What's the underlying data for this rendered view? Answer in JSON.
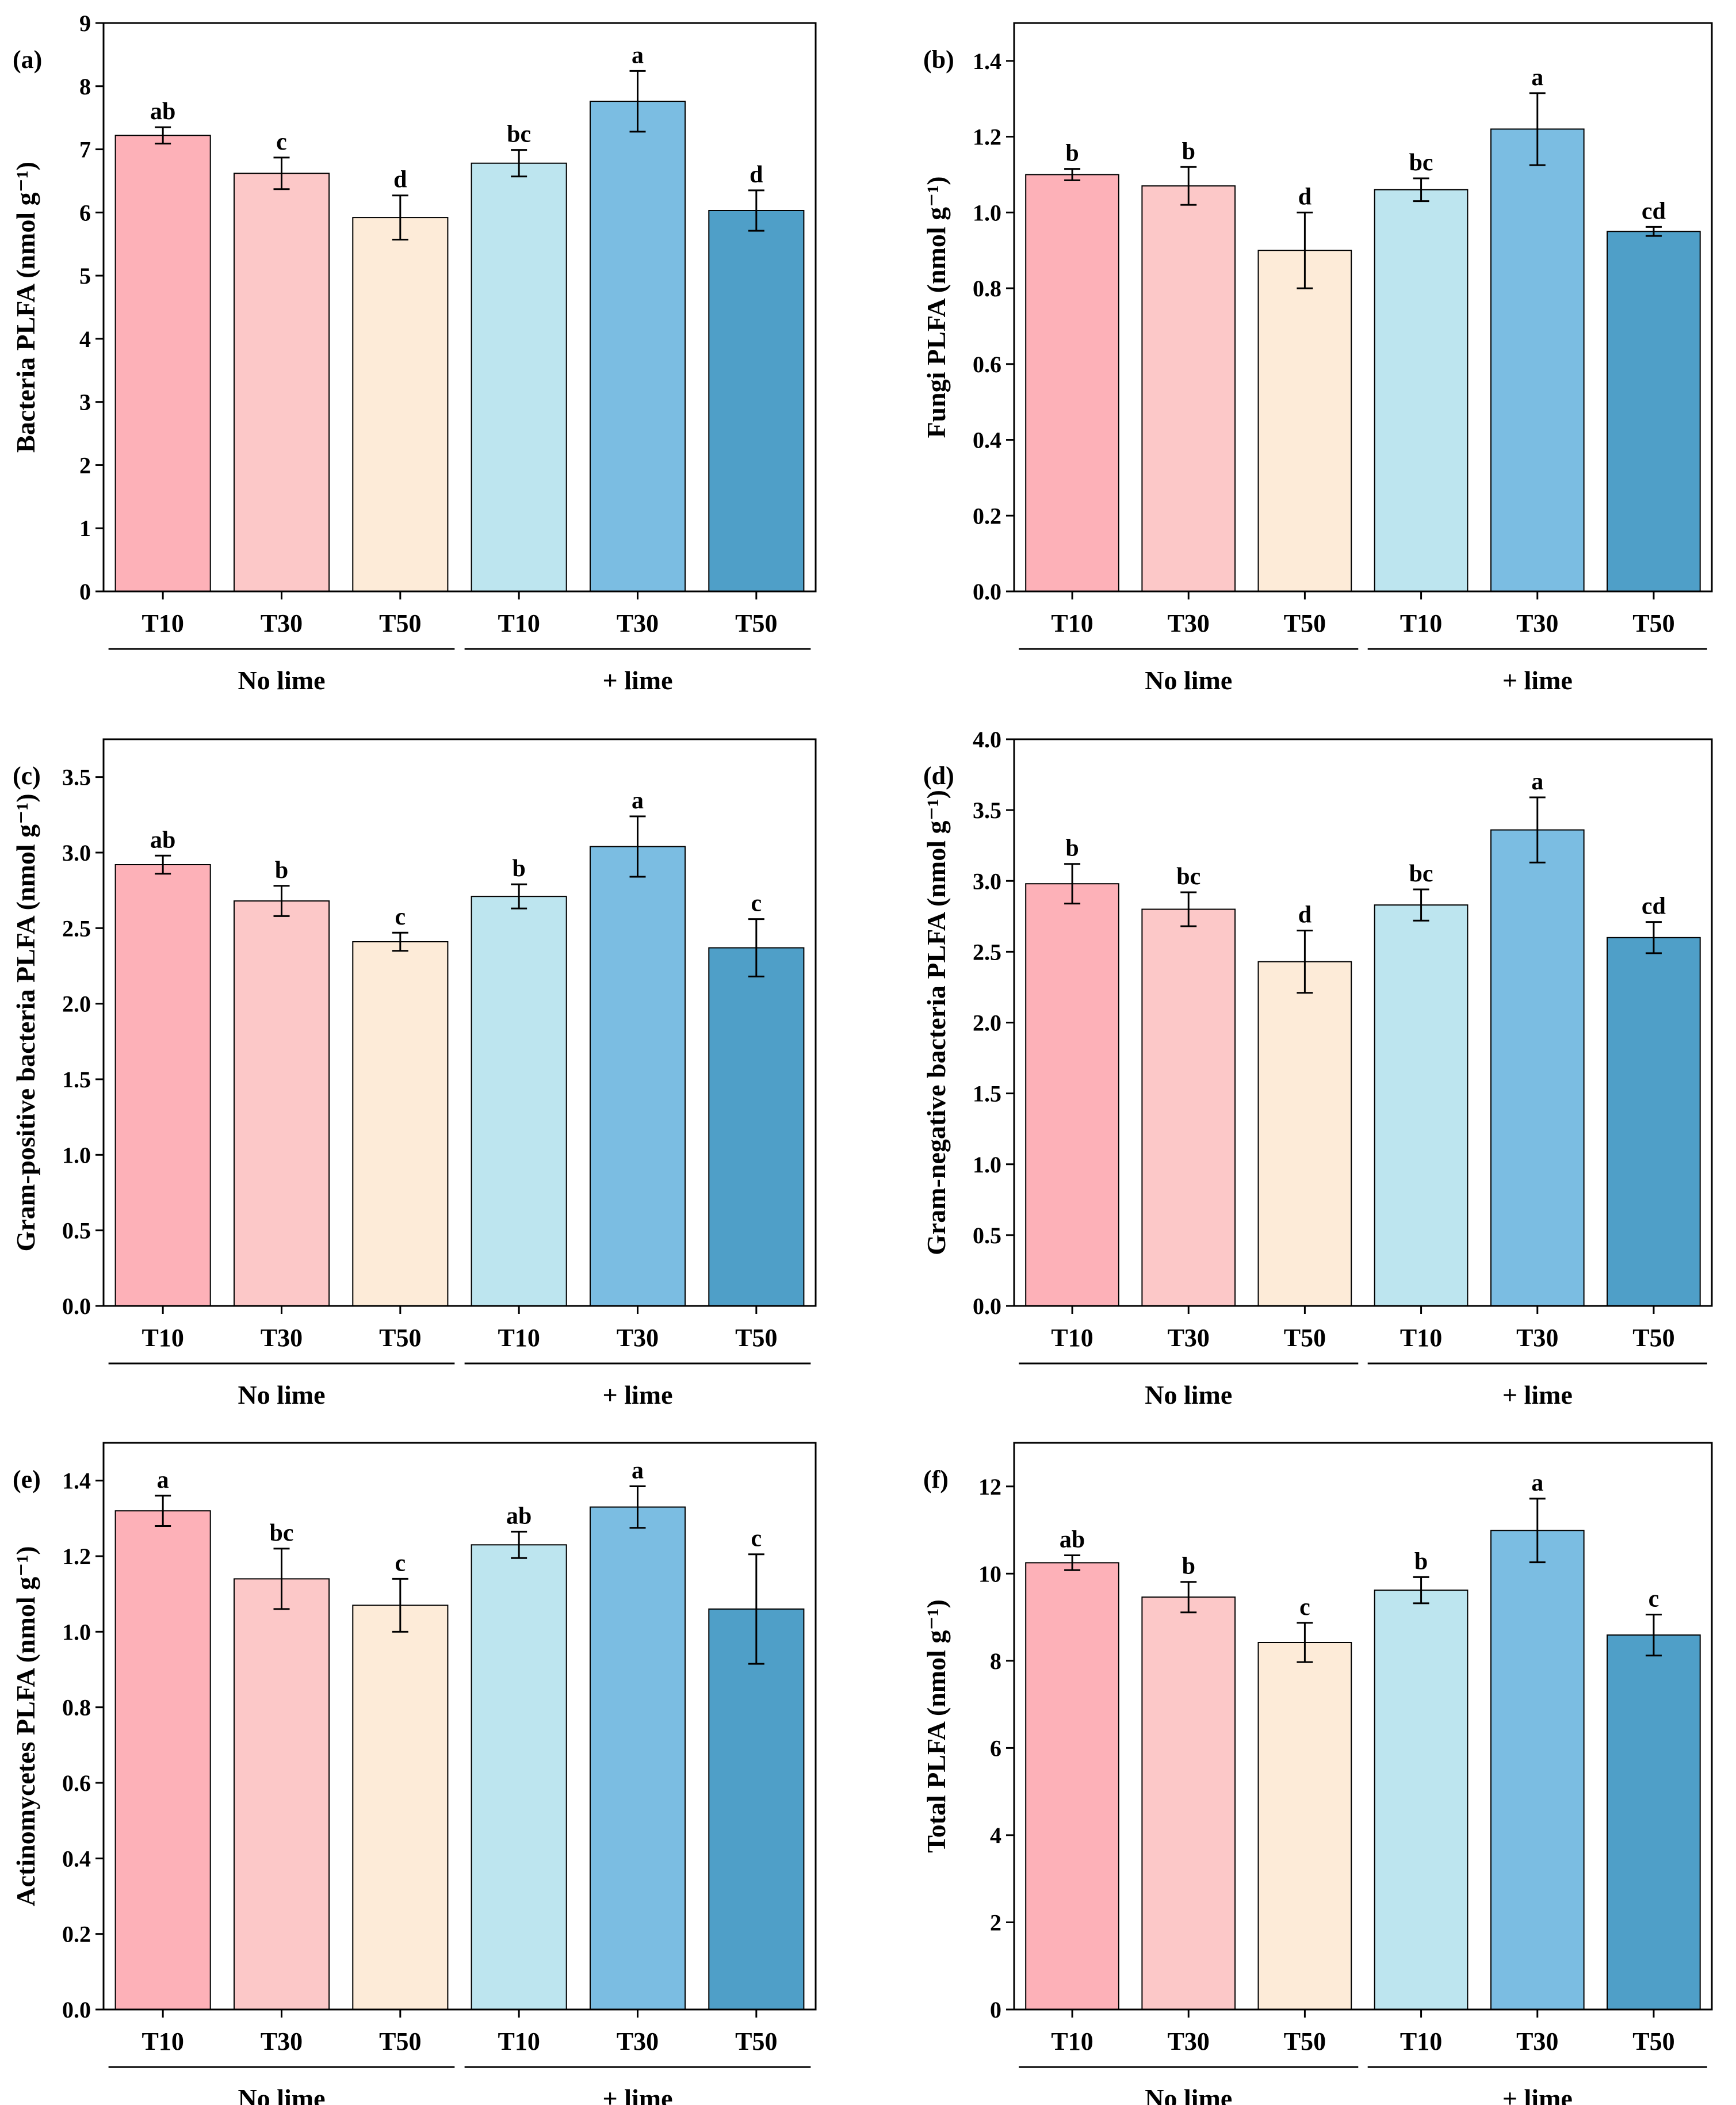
{
  "colors": {
    "bars": [
      "#fdb1b8",
      "#fcc8c8",
      "#fdebd8",
      "#bde5ef",
      "#7bbde2",
      "#4f9fc8"
    ],
    "axis": "#000000",
    "error_bar": "#000000"
  },
  "chart_data": [
    {
      "id": "a",
      "type": "bar",
      "panel_label": "(a)",
      "ylabel": "Bacteria PLFA (nmol g⁻¹)",
      "categories": [
        "T10",
        "T30",
        "T50",
        "T10",
        "T30",
        "T50"
      ],
      "groups": [
        {
          "label": "No lime",
          "members": [
            0,
            1,
            2
          ]
        },
        {
          "label": "+ lime",
          "members": [
            3,
            4,
            5
          ]
        }
      ],
      "values": [
        7.22,
        6.62,
        5.92,
        6.78,
        7.76,
        6.03
      ],
      "errors": [
        0.13,
        0.25,
        0.35,
        0.21,
        0.48,
        0.32
      ],
      "significance": [
        "ab",
        "c",
        "d",
        "bc",
        "a",
        "d"
      ],
      "ylim": [
        0,
        9
      ],
      "yticks": [
        0,
        1,
        2,
        3,
        4,
        5,
        6,
        7,
        8,
        9
      ],
      "ytick_labels": [
        "0",
        "1",
        "2",
        "3",
        "4",
        "5",
        "6",
        "7",
        "8",
        "9"
      ]
    },
    {
      "id": "b",
      "type": "bar",
      "panel_label": "(b)",
      "ylabel": "Fungi PLFA (nmol g⁻¹)",
      "categories": [
        "T10",
        "T30",
        "T50",
        "T10",
        "T30",
        "T50"
      ],
      "groups": [
        {
          "label": "No lime",
          "members": [
            0,
            1,
            2
          ]
        },
        {
          "label": "+ lime",
          "members": [
            3,
            4,
            5
          ]
        }
      ],
      "values": [
        1.1,
        1.07,
        0.9,
        1.06,
        1.22,
        0.95
      ],
      "errors": [
        0.015,
        0.05,
        0.1,
        0.03,
        0.095,
        0.012
      ],
      "significance": [
        "b",
        "b",
        "d",
        "bc",
        "a",
        "cd"
      ],
      "ylim": [
        0,
        1.5
      ],
      "yticks": [
        0,
        0.2,
        0.4,
        0.6,
        0.8,
        1.0,
        1.2,
        1.4
      ],
      "ytick_labels": [
        "0.0",
        "0.2",
        "0.4",
        "0.6",
        "0.8",
        "1.0",
        "1.2",
        "1.4"
      ]
    },
    {
      "id": "c",
      "type": "bar",
      "panel_label": "(c)",
      "ylabel": "Gram-positive bacteria PLFA (nmol g⁻¹)",
      "categories": [
        "T10",
        "T30",
        "T50",
        "T10",
        "T30",
        "T50"
      ],
      "groups": [
        {
          "label": "No lime",
          "members": [
            0,
            1,
            2
          ]
        },
        {
          "label": "+ lime",
          "members": [
            3,
            4,
            5
          ]
        }
      ],
      "values": [
        2.92,
        2.68,
        2.41,
        2.71,
        3.04,
        2.37
      ],
      "errors": [
        0.06,
        0.1,
        0.06,
        0.08,
        0.2,
        0.19
      ],
      "significance": [
        "ab",
        "b",
        "c",
        "b",
        "a",
        "c"
      ],
      "ylim": [
        0,
        3.75
      ],
      "yticks": [
        0,
        0.5,
        1.0,
        1.5,
        2.0,
        2.5,
        3.0,
        3.5
      ],
      "ytick_labels": [
        "0.0",
        "0.5",
        "1.0",
        "1.5",
        "2.0",
        "2.5",
        "3.0",
        "3.5"
      ]
    },
    {
      "id": "d",
      "type": "bar",
      "panel_label": "(d)",
      "ylabel": "Gram-negative bacteria PLFA (nmol g⁻¹)",
      "categories": [
        "T10",
        "T30",
        "T50",
        "T10",
        "T30",
        "T50"
      ],
      "groups": [
        {
          "label": "No lime",
          "members": [
            0,
            1,
            2
          ]
        },
        {
          "label": "+ lime",
          "members": [
            3,
            4,
            5
          ]
        }
      ],
      "values": [
        2.98,
        2.8,
        2.43,
        2.83,
        3.36,
        2.6
      ],
      "errors": [
        0.14,
        0.12,
        0.22,
        0.11,
        0.23,
        0.11
      ],
      "significance": [
        "b",
        "bc",
        "d",
        "bc",
        "a",
        "cd"
      ],
      "ylim": [
        0,
        4.0
      ],
      "yticks": [
        0,
        0.5,
        1.0,
        1.5,
        2.0,
        2.5,
        3.0,
        3.5,
        4.0
      ],
      "ytick_labels": [
        "0.0",
        "0.5",
        "1.0",
        "1.5",
        "2.0",
        "2.5",
        "3.0",
        "3.5",
        "4.0"
      ]
    },
    {
      "id": "e",
      "type": "bar",
      "panel_label": "(e)",
      "ylabel": "Actinomycetes PLFA (nmol g⁻¹)",
      "categories": [
        "T10",
        "T30",
        "T50",
        "T10",
        "T30",
        "T50"
      ],
      "groups": [
        {
          "label": "No lime",
          "members": [
            0,
            1,
            2
          ]
        },
        {
          "label": "+ lime",
          "members": [
            3,
            4,
            5
          ]
        }
      ],
      "values": [
        1.32,
        1.14,
        1.07,
        1.23,
        1.33,
        1.06
      ],
      "errors": [
        0.04,
        0.08,
        0.07,
        0.035,
        0.055,
        0.145
      ],
      "significance": [
        "a",
        "bc",
        "c",
        "ab",
        "a",
        "c"
      ],
      "ylim": [
        0,
        1.5
      ],
      "yticks": [
        0,
        0.2,
        0.4,
        0.6,
        0.8,
        1.0,
        1.2,
        1.4
      ],
      "ytick_labels": [
        "0.0",
        "0.2",
        "0.4",
        "0.6",
        "0.8",
        "1.0",
        "1.2",
        "1.4"
      ]
    },
    {
      "id": "f",
      "type": "bar",
      "panel_label": "(f)",
      "ylabel": "Total PLFA (nmol g⁻¹)",
      "categories": [
        "T10",
        "T30",
        "T50",
        "T10",
        "T30",
        "T50"
      ],
      "groups": [
        {
          "label": "No lime",
          "members": [
            0,
            1,
            2
          ]
        },
        {
          "label": "+ lime",
          "members": [
            3,
            4,
            5
          ]
        }
      ],
      "values": [
        10.25,
        9.46,
        8.42,
        9.62,
        10.99,
        8.59
      ],
      "errors": [
        0.17,
        0.35,
        0.45,
        0.3,
        0.73,
        0.47
      ],
      "significance": [
        "ab",
        "b",
        "c",
        "b",
        "a",
        "c"
      ],
      "ylim": [
        0,
        13
      ],
      "yticks": [
        0,
        2,
        4,
        6,
        8,
        10,
        12
      ],
      "ytick_labels": [
        "0",
        "2",
        "4",
        "6",
        "8",
        "10",
        "12"
      ]
    }
  ]
}
